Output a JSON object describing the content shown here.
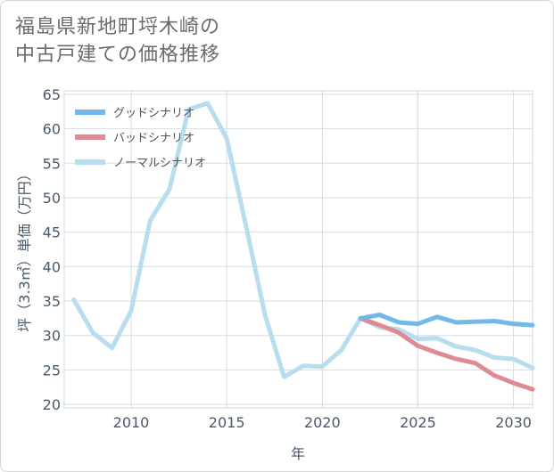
{
  "title_line1": "福島県新地町埒木崎の",
  "title_line2": "中古戸建ての価格推移",
  "chart_data": {
    "type": "line",
    "xlabel": "年",
    "ylabel": "坪（3.3㎡）単価（万円）",
    "xlim": [
      2006.5,
      2031
    ],
    "ylim": [
      19.5,
      65.5
    ],
    "x_ticks": [
      2010,
      2015,
      2020,
      2025,
      2030
    ],
    "y_ticks": [
      20,
      25,
      30,
      35,
      40,
      45,
      50,
      55,
      60,
      65
    ],
    "grid": true,
    "legend_position": "top-left",
    "series": [
      {
        "name": "グッドシナリオ",
        "color": "#72b8e8",
        "x": [
          2022,
          2023,
          2024,
          2025,
          2026,
          2027,
          2028,
          2029,
          2030,
          2031
        ],
        "values": [
          32.5,
          33.0,
          31.9,
          31.7,
          32.7,
          31.9,
          32.0,
          32.1,
          31.7,
          31.5
        ]
      },
      {
        "name": "バッドシナリオ",
        "color": "#e08a94",
        "x": [
          2022,
          2023,
          2024,
          2025,
          2026,
          2027,
          2028,
          2029,
          2030,
          2031
        ],
        "values": [
          32.5,
          31.5,
          30.4,
          28.5,
          27.5,
          26.6,
          26.0,
          24.2,
          23.1,
          22.2
        ]
      },
      {
        "name": "ノーマルシナリオ",
        "color": "#b8ddef",
        "x": [
          2007,
          2008,
          2009,
          2010,
          2011,
          2012,
          2013,
          2014,
          2015,
          2016,
          2017,
          2018,
          2019,
          2020,
          2021,
          2022,
          2023,
          2024,
          2025,
          2026,
          2027,
          2028,
          2029,
          2030,
          2031
        ],
        "values": [
          35.2,
          30.4,
          28.2,
          33.6,
          46.7,
          51.2,
          62.8,
          63.7,
          58.6,
          46.0,
          33.0,
          24.0,
          25.6,
          25.5,
          27.9,
          32.5,
          31.2,
          30.9,
          29.5,
          29.6,
          28.4,
          27.9,
          26.8,
          26.6,
          25.3
        ]
      }
    ]
  }
}
